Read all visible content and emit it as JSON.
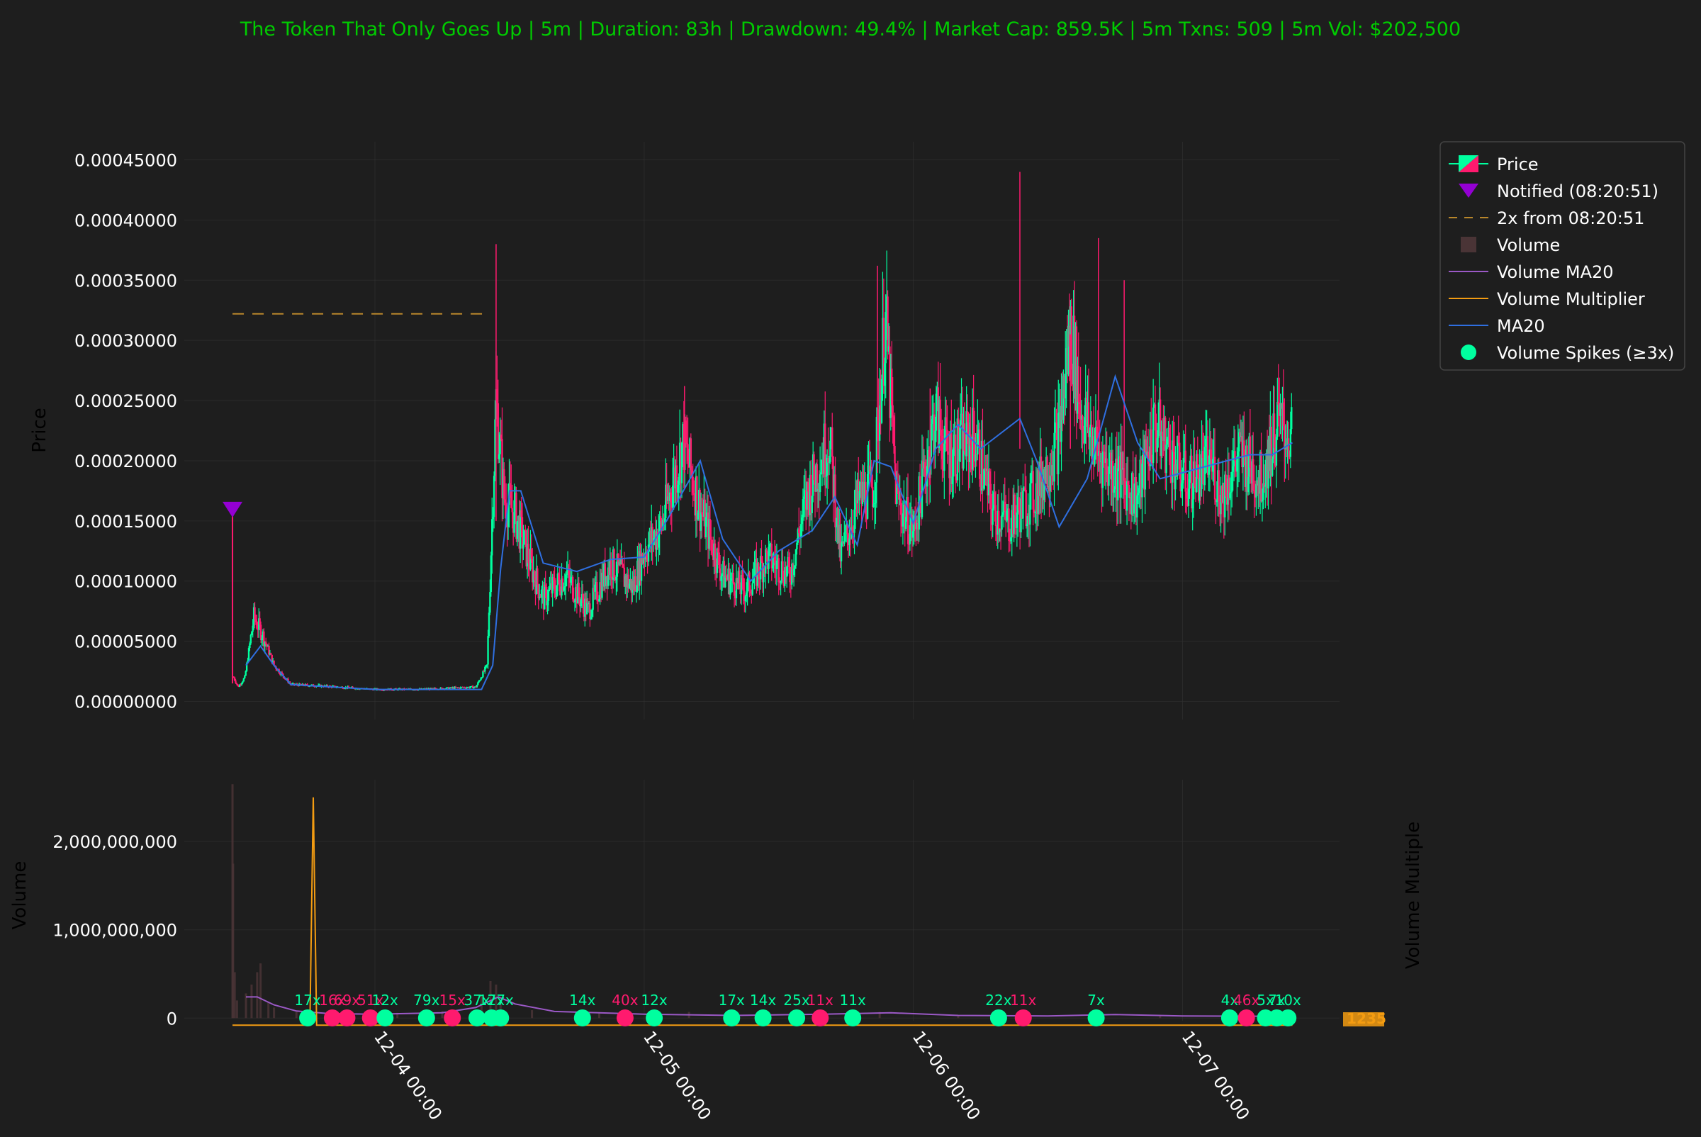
{
  "title": "The Token That Only Goes Up | 5m | Duration: 83h | Drawdown: 49.4% | Market Cap: 859.5K | 5m Txns: 509 | 5m Vol: $202,500",
  "colors": {
    "background": "#1e1e1e",
    "title": "#00cc00",
    "up": "#00ff9f",
    "down": "#ff1a6e",
    "ma20": "#2f6fe0",
    "volume_ma20": "#9b59c6",
    "volume_multiplier": "#f39c12",
    "notified": "#9400d3",
    "volume_bar": "#4a3436",
    "grid": "#333333",
    "text": "#ffffff"
  },
  "legend": {
    "items": [
      {
        "label": "Price",
        "icon": "candle-icon"
      },
      {
        "label": "Notified (08:20:51)",
        "icon": "triangle-down-icon"
      },
      {
        "label": "2x from 08:20:51",
        "icon": "dashed-line-icon"
      },
      {
        "label": "Volume",
        "icon": "square-icon"
      },
      {
        "label": "Volume MA20",
        "icon": "line-icon"
      },
      {
        "label": "Volume Multiplier",
        "icon": "line-icon"
      },
      {
        "label": "MA20",
        "icon": "line-icon"
      },
      {
        "label": "Volume Spikes (≥3x)",
        "icon": "circle-icon"
      }
    ]
  },
  "chart_data": {
    "type": "candlestick",
    "x_range_hours": [
      -17,
      86
    ],
    "price_axis": {
      "label": "Price",
      "ylim": [
        -1.5e-05,
        0.000465
      ],
      "ticks": [
        "0.00000000",
        "0.00005000",
        "0.00010000",
        "0.00015000",
        "0.00020000",
        "0.00025000",
        "0.00030000",
        "0.00035000",
        "0.00040000",
        "0.00045000"
      ]
    },
    "volume_axis": {
      "label": "Volume",
      "ylim": [
        -30000000,
        2700000000
      ],
      "ticks": [
        "0",
        "1,000,000,000",
        "2,000,000,000"
      ]
    },
    "right_axis_label": "Volume Multiple",
    "x_ticks": [
      "12-04 00:00",
      "12-05 00:00",
      "12-06 00:00",
      "12-07 00:00"
    ],
    "notified": {
      "hour": -12.7,
      "price": 0.00016
    },
    "two_x_line": {
      "price": 0.000322,
      "from_hour": -12.7,
      "to_hour": 10.0
    },
    "price_path": [
      [
        -12.7,
        0.000155
      ],
      [
        -12.6,
        2e-05
      ],
      [
        -12.2,
        1.2e-05
      ],
      [
        -11.6,
        2e-05
      ],
      [
        -10.8,
        7e-05
      ],
      [
        -10,
        5.5e-05
      ],
      [
        -9,
        3e-05
      ],
      [
        -7.5,
        1.4e-05
      ],
      [
        -5,
        1.3e-05
      ],
      [
        0,
        1e-05
      ],
      [
        4,
        1e-05
      ],
      [
        9,
        1.2e-05
      ],
      [
        10,
        3e-05
      ],
      [
        10.8,
        0.00025
      ],
      [
        11.5,
        0.00017
      ],
      [
        12.5,
        0.000155
      ],
      [
        14,
        0.00011
      ],
      [
        15,
        8.5e-05
      ],
      [
        17,
        0.000105
      ],
      [
        19,
        7.5e-05
      ],
      [
        21,
        0.000115
      ],
      [
        23,
        9.5e-05
      ],
      [
        24,
        0.000125
      ],
      [
        25.5,
        0.000145
      ],
      [
        27.5,
        0.000215
      ],
      [
        29,
        0.00016
      ],
      [
        31,
        0.000105
      ],
      [
        33,
        9.2e-05
      ],
      [
        35,
        0.00012
      ],
      [
        37,
        0.000105
      ],
      [
        38.5,
        0.00017
      ],
      [
        40.5,
        0.00022
      ],
      [
        41.5,
        0.00012
      ],
      [
        43,
        0.000165
      ],
      [
        44.5,
        0.00018
      ],
      [
        45.5,
        0.00032
      ],
      [
        46.5,
        0.00017
      ],
      [
        48,
        0.00014
      ],
      [
        50,
        0.00024
      ],
      [
        51,
        0.000205
      ],
      [
        53.5,
        0.00022
      ],
      [
        55,
        0.00016
      ],
      [
        56.5,
        0.000148
      ],
      [
        59,
        0.000175
      ],
      [
        61,
        0.00022
      ],
      [
        62,
        0.00031
      ],
      [
        63,
        0.00024
      ],
      [
        64.5,
        0.000205
      ],
      [
        66.5,
        0.000185
      ],
      [
        68,
        0.00017
      ],
      [
        69.5,
        0.00023
      ],
      [
        71,
        0.000205
      ],
      [
        72.5,
        0.00018
      ],
      [
        74.5,
        0.0002
      ],
      [
        75.5,
        0.00017
      ],
      [
        77,
        0.000205
      ],
      [
        79,
        0.000185
      ],
      [
        80.5,
        0.00023
      ],
      [
        81.8,
        0.00022
      ]
    ],
    "price_spikes": [
      [
        10.8,
        0.00038,
        0.00015
      ],
      [
        27.6,
        0.000262,
        0.00019
      ],
      [
        44.8,
        0.000362,
        0.00019
      ],
      [
        57.5,
        0.00044,
        0.00021
      ],
      [
        64.5,
        0.000385,
        0.00022
      ],
      [
        66.8,
        0.00035,
        0.00016
      ],
      [
        62.0,
        0.000305,
        0.00021
      ],
      [
        49.5,
        0.00026,
        0.00018
      ]
    ],
    "ma20_path": [
      [
        -11.5,
        3e-05
      ],
      [
        -10.2,
        4.6e-05
      ],
      [
        -9,
        3e-05
      ],
      [
        -7.5,
        1.4e-05
      ],
      [
        0,
        1e-05
      ],
      [
        9.5,
        1e-05
      ],
      [
        10.5,
        3e-05
      ],
      [
        11.2,
        0.00011
      ],
      [
        12,
        0.000175
      ],
      [
        13,
        0.000175
      ],
      [
        15,
        0.000115
      ],
      [
        18,
        0.000108
      ],
      [
        21,
        0.000118
      ],
      [
        24,
        0.00012
      ],
      [
        26,
        0.00015
      ],
      [
        29,
        0.0002
      ],
      [
        31,
        0.000135
      ],
      [
        33.5,
        0.0001
      ],
      [
        36,
        0.000125
      ],
      [
        39,
        0.000142
      ],
      [
        41,
        0.00017
      ],
      [
        43,
        0.00013
      ],
      [
        44.5,
        0.0002
      ],
      [
        46,
        0.000195
      ],
      [
        48,
        0.000148
      ],
      [
        50,
        0.00021
      ],
      [
        52,
        0.00023
      ],
      [
        54,
        0.00021
      ],
      [
        57.5,
        0.000235
      ],
      [
        59,
        0.0002
      ],
      [
        61,
        0.000145
      ],
      [
        63.5,
        0.000185
      ],
      [
        66,
        0.00027
      ],
      [
        68,
        0.000215
      ],
      [
        70,
        0.000185
      ],
      [
        72,
        0.00019
      ],
      [
        74,
        0.000195
      ],
      [
        76,
        0.0002
      ],
      [
        78,
        0.000205
      ],
      [
        80,
        0.000205
      ],
      [
        81.8,
        0.000215
      ]
    ],
    "volume_bars": [
      [
        -12.7,
        2650000000
      ],
      [
        -12.65,
        1750000000
      ],
      [
        -12.5,
        520000000
      ],
      [
        -12.3,
        200000000
      ],
      [
        -11.5,
        280000000
      ],
      [
        -11,
        380000000
      ],
      [
        -10.5,
        520000000
      ],
      [
        -10.2,
        620000000
      ],
      [
        -9.5,
        180000000
      ],
      [
        -9,
        120000000
      ],
      [
        -7,
        70000000
      ],
      [
        -3,
        50000000
      ],
      [
        2,
        60000000
      ],
      [
        6,
        80000000
      ],
      [
        9.5,
        250000000
      ],
      [
        10.3,
        420000000
      ],
      [
        10.8,
        380000000
      ],
      [
        11.2,
        200000000
      ],
      [
        14,
        90000000
      ],
      [
        20,
        60000000
      ],
      [
        28,
        70000000
      ],
      [
        35,
        40000000
      ],
      [
        40,
        45000000
      ],
      [
        45,
        70000000
      ],
      [
        52,
        30000000
      ],
      [
        58,
        40000000
      ],
      [
        64,
        55000000
      ],
      [
        70,
        30000000
      ],
      [
        76,
        25000000
      ],
      [
        81,
        20000000
      ]
    ],
    "volume_ma20_path": [
      [
        -11.5,
        240000000
      ],
      [
        -10.5,
        240000000
      ],
      [
        -9,
        150000000
      ],
      [
        -7,
        80000000
      ],
      [
        -4,
        50000000
      ],
      [
        0,
        45000000
      ],
      [
        6,
        60000000
      ],
      [
        9,
        120000000
      ],
      [
        11,
        240000000
      ],
      [
        12.5,
        160000000
      ],
      [
        16,
        75000000
      ],
      [
        24,
        45000000
      ],
      [
        32,
        30000000
      ],
      [
        40,
        45000000
      ],
      [
        46,
        60000000
      ],
      [
        52,
        30000000
      ],
      [
        60,
        25000000
      ],
      [
        66,
        40000000
      ],
      [
        72,
        25000000
      ],
      [
        81.8,
        20000000
      ]
    ],
    "volume_multiplier_spike": {
      "hour": -5.5,
      "value": 2500000000
    },
    "spikes": [
      {
        "hour": -6.0,
        "label": "17x",
        "up": true
      },
      {
        "hour": -3.8,
        "label": "16x",
        "up": false
      },
      {
        "hour": -2.5,
        "label": "69x",
        "up": false
      },
      {
        "hour": -0.4,
        "label": "51x",
        "up": false
      },
      {
        "hour": 0.9,
        "label": "12x",
        "up": true
      },
      {
        "hour": 4.6,
        "label": "79x",
        "up": true
      },
      {
        "hour": 6.9,
        "label": "15x",
        "up": false
      },
      {
        "hour": 9.1,
        "label": "37x",
        "up": true
      },
      {
        "hour": 10.4,
        "label": "17x",
        "up": true
      },
      {
        "hour": 11.2,
        "label": "27x",
        "up": true
      },
      {
        "hour": 18.5,
        "label": "14x",
        "up": true
      },
      {
        "hour": 22.3,
        "label": "40x",
        "up": false
      },
      {
        "hour": 24.9,
        "label": "12x",
        "up": true
      },
      {
        "hour": 31.8,
        "label": "17x",
        "up": true
      },
      {
        "hour": 34.6,
        "label": "14x",
        "up": true
      },
      {
        "hour": 37.6,
        "label": "25x",
        "up": true
      },
      {
        "hour": 39.7,
        "label": "11x",
        "up": false
      },
      {
        "hour": 42.6,
        "label": "11x",
        "up": true
      },
      {
        "hour": 55.6,
        "label": "22x",
        "up": true
      },
      {
        "hour": 57.8,
        "label": "11x",
        "up": false
      },
      {
        "hour": 64.3,
        "label": "7x",
        "up": true
      },
      {
        "hour": 76.2,
        "label": "4x",
        "up": true
      },
      {
        "hour": 77.7,
        "label": "46x",
        "up": false
      },
      {
        "hour": 79.4,
        "label": "5x",
        "up": true
      },
      {
        "hour": 80.4,
        "label": "7x",
        "up": true
      },
      {
        "hour": 81.4,
        "label": "10x",
        "up": true
      }
    ],
    "right_axis_ticks": [
      "1",
      "2",
      "3",
      "5"
    ]
  }
}
